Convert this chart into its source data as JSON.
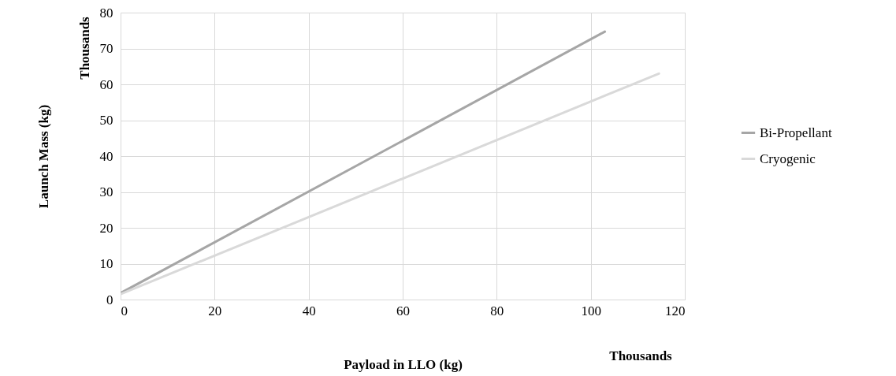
{
  "chart_data": {
    "type": "line",
    "xlabel": "Payload in LLO (kg)",
    "ylabel": "Launch Mass (kg)",
    "annotations": [
      "Thousands",
      "Thousands"
    ],
    "series": [
      {
        "name": "Bi-Propellant",
        "color": "#a6a6a6",
        "x": [
          0,
          103
        ],
        "values": [
          1.8,
          74.7
        ]
      },
      {
        "name": "Cryogenic",
        "color": "#d9d9d9",
        "x": [
          0,
          114.5
        ],
        "values": [
          1.5,
          63
        ]
      }
    ],
    "xlim": [
      0,
      120
    ],
    "xticks": [
      0,
      20,
      40,
      60,
      80,
      100,
      120
    ],
    "ylim": [
      0,
      80
    ],
    "yticks": [
      0,
      10,
      20,
      30,
      40,
      50,
      60,
      70,
      80
    ],
    "grid": true,
    "legend": "right",
    "marker": "none",
    "line_style": "solid"
  }
}
